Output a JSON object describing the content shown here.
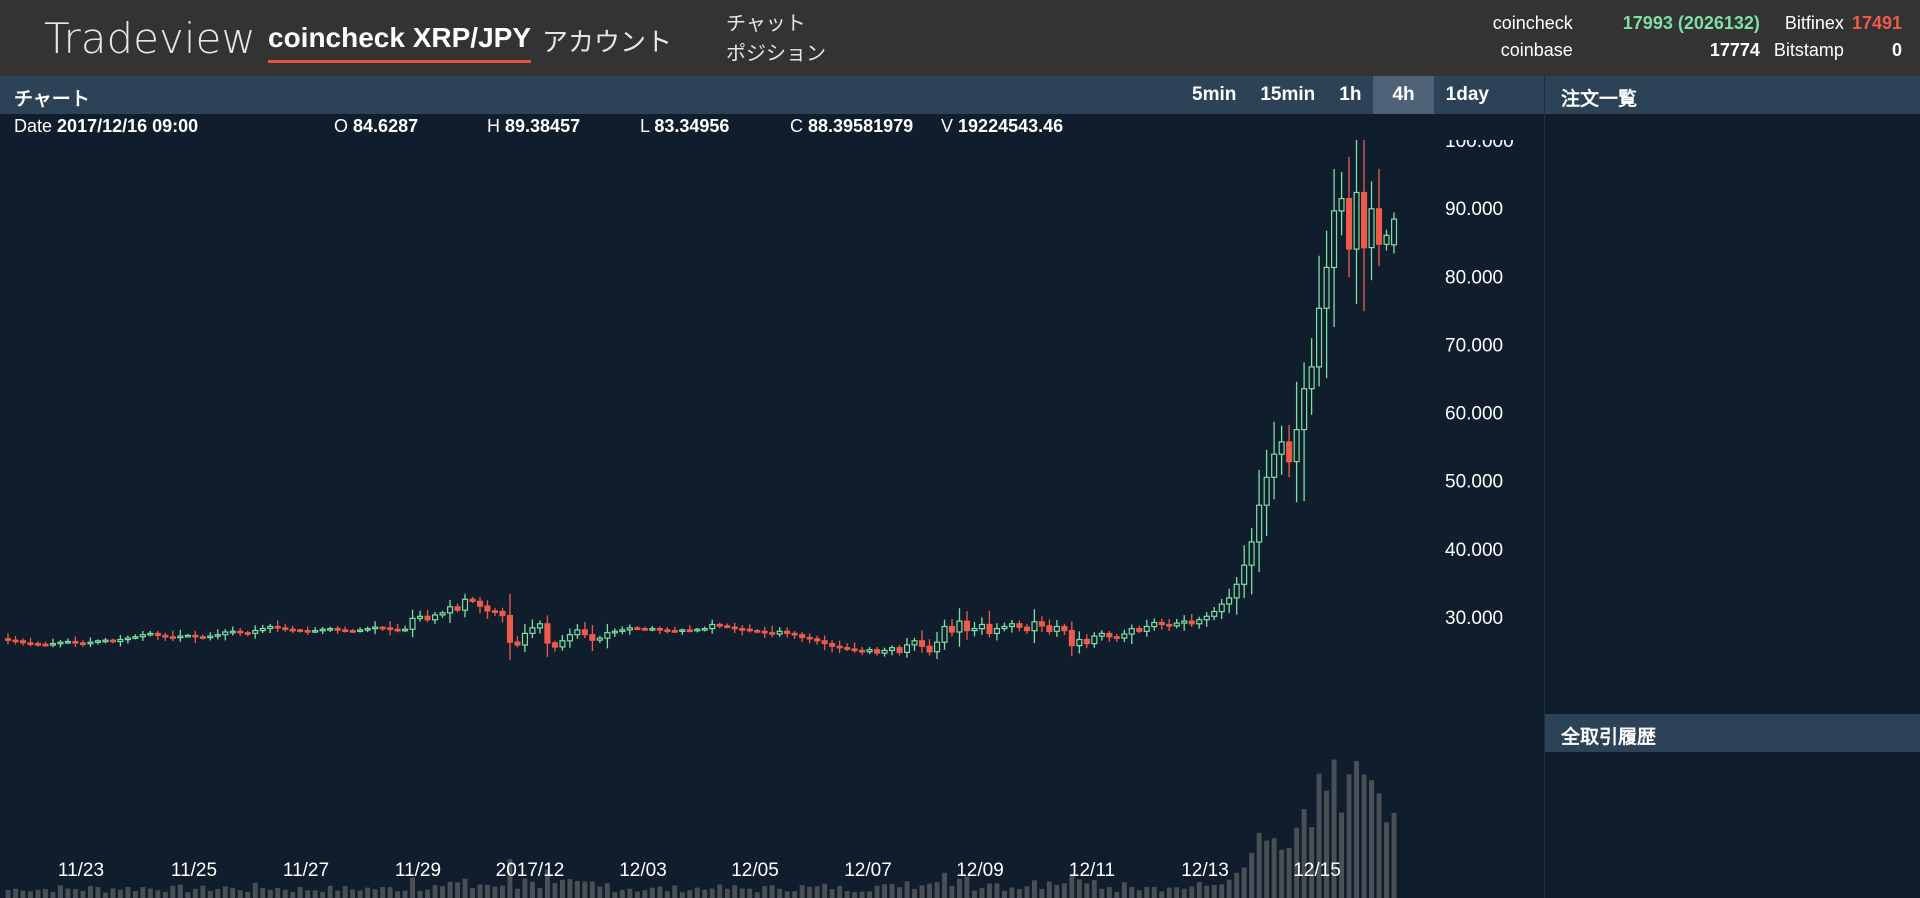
{
  "header": {
    "brand": "Tradeview",
    "pair_tab": "coincheck XRP/JPY",
    "account_tab": "アカウント",
    "nav": [
      "チャット",
      "ポジション"
    ],
    "prices": [
      {
        "exchange": "coincheck",
        "value": "17993 (2026132)",
        "color": "#7ee0a5",
        "exchange2": "Bitfinex",
        "value2": "17491",
        "color2": "#ef5b4a"
      },
      {
        "exchange": "coinbase",
        "value": "17774",
        "color": "#ffffff",
        "exchange2": "Bitstamp",
        "value2": "0",
        "color2": "#ffffff"
      }
    ]
  },
  "chart_panel": {
    "title": "チャート",
    "intervals": [
      "5min",
      "15min",
      "1h",
      "4h",
      "1day"
    ],
    "active_interval": "4h"
  },
  "ohlc": {
    "date_label": "Date",
    "date": "2017/12/16 09:00",
    "o_label": "O",
    "o": "84.6287",
    "h_label": "H",
    "h": "89.38457",
    "l_label": "L",
    "l": "83.34956",
    "c_label": "C",
    "c": "88.39581979",
    "v_label": "V",
    "v": "19224543.46"
  },
  "side": {
    "orders_title": "注文一覧",
    "history_title": "全取引履歴"
  },
  "chart_data": {
    "type": "candlestick",
    "colors": {
      "up": "#7ee0a5",
      "down": "#ef5b4a",
      "volume": "#4a4f55",
      "background": "#0f1d2c"
    },
    "y_ticks": [
      "100.000",
      "90.000",
      "80.000",
      "70.000",
      "60.000",
      "50.000",
      "40.000",
      "30.000"
    ],
    "y_tick_values": [
      100,
      90,
      80,
      70,
      60,
      50,
      40,
      30
    ],
    "x_ticks": [
      "11/23",
      "11/25",
      "11/27",
      "11/29",
      "2017/12",
      "12/03",
      "12/05",
      "12/07",
      "12/09",
      "12/11",
      "12/13",
      "12/15"
    ],
    "ylim": [
      18,
      103
    ],
    "closes": [
      26.6,
      26.5,
      26.2,
      26.1,
      26.0,
      25.9,
      26.1,
      26.3,
      26.4,
      26.2,
      26.1,
      26.3,
      26.5,
      26.6,
      26.4,
      26.7,
      26.9,
      27.1,
      27.4,
      27.6,
      27.3,
      27.1,
      27.0,
      27.2,
      27.3,
      27.1,
      27.0,
      27.2,
      27.4,
      27.8,
      27.9,
      27.7,
      27.6,
      28.0,
      28.3,
      28.6,
      28.4,
      28.2,
      28.1,
      28.0,
      27.9,
      28.0,
      28.2,
      28.3,
      28.1,
      28.0,
      27.9,
      28.1,
      28.3,
      28.5,
      28.4,
      28.2,
      28.0,
      28.2,
      29.8,
      30.1,
      29.6,
      30.3,
      30.6,
      31.5,
      31.0,
      32.6,
      32.3,
      31.6,
      30.9,
      30.8,
      30.2,
      26.3,
      25.9,
      27.6,
      28.4,
      29.0,
      26.2,
      25.6,
      26.5,
      27.4,
      28.1,
      27.4,
      26.6,
      26.9,
      27.7,
      27.9,
      28.1,
      28.4,
      28.3,
      28.2,
      28.3,
      28.1,
      28.0,
      27.9,
      28.1,
      28.0,
      28.2,
      28.3,
      28.9,
      28.7,
      28.5,
      28.3,
      28.2,
      28.0,
      27.9,
      27.7,
      27.5,
      27.9,
      27.6,
      27.4,
      27.0,
      26.8,
      26.5,
      26.1,
      25.7,
      25.5,
      25.3,
      25.1,
      24.9,
      25.2,
      24.7,
      25.1,
      25.5,
      24.8,
      25.9,
      26.5,
      25.7,
      24.9,
      26.3,
      28.6,
      27.8,
      29.4,
      28.0,
      28.3,
      28.9,
      27.6,
      28.3,
      28.6,
      29.0,
      28.5,
      28.0,
      29.3,
      28.7,
      27.9,
      28.6,
      28.0,
      25.8,
      26.7,
      26.1,
      27.2,
      27.6,
      27.1,
      26.9,
      27.5,
      28.3,
      27.9,
      28.6,
      29.2,
      28.9,
      28.7,
      29.1,
      29.4,
      29.0,
      29.6,
      30.1,
      30.8,
      31.9,
      32.8,
      34.8,
      37.6,
      41.0,
      46.4,
      50.5,
      53.9,
      55.7,
      52.8,
      57.5,
      63.5,
      66.7,
      75.3,
      81.3,
      89.6,
      91.4,
      84.0,
      92.3,
      84.2,
      89.9,
      84.7,
      86.0,
      88.4
    ],
    "last_bar": {
      "open": 84.6287,
      "high": 89.38457,
      "low": 83.34956,
      "close": 88.39581979
    }
  }
}
